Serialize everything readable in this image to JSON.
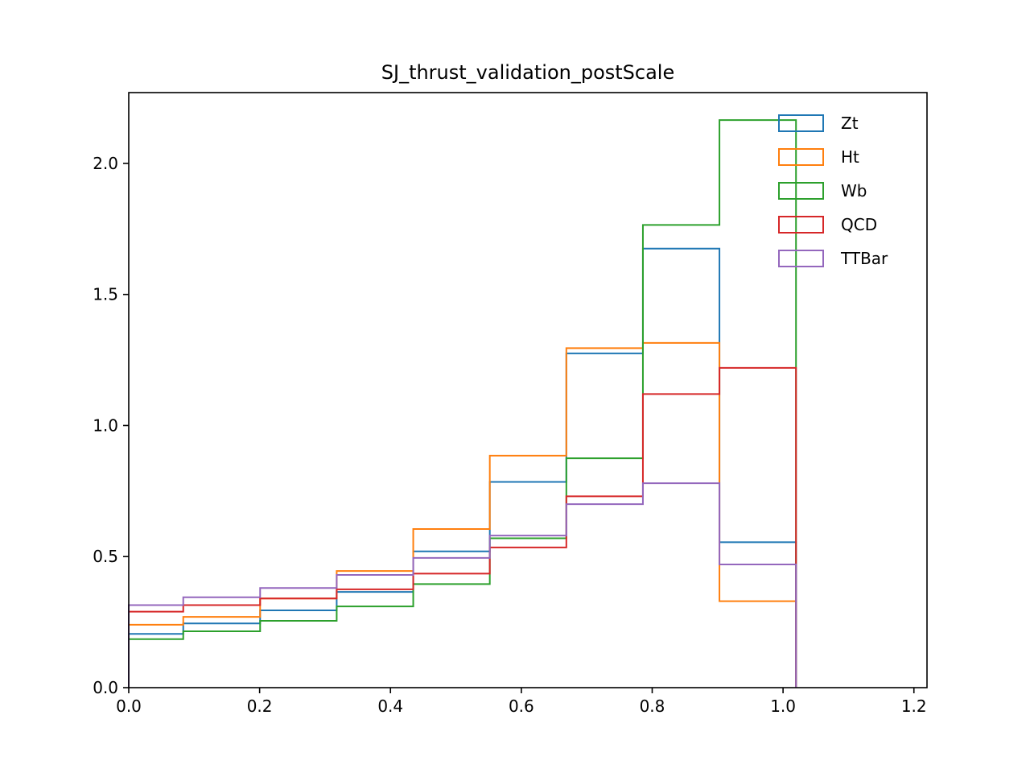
{
  "chart_data": {
    "type": "histogram",
    "title": "SJ_thrust_validation_postScale",
    "xlabel": "",
    "ylabel": "",
    "xlim": [
      0.0,
      1.22
    ],
    "ylim": [
      0.0,
      2.27
    ],
    "xticks": [
      {
        "value": 0.0,
        "label": "0.0"
      },
      {
        "value": 0.2,
        "label": "0.2"
      },
      {
        "value": 0.4,
        "label": "0.4"
      },
      {
        "value": 0.6,
        "label": "0.6"
      },
      {
        "value": 0.8,
        "label": "0.8"
      },
      {
        "value": 1.0,
        "label": "1.0"
      },
      {
        "value": 1.2,
        "label": "1.2"
      }
    ],
    "yticks": [
      {
        "value": 0.0,
        "label": "0.0"
      },
      {
        "value": 0.5,
        "label": "0.5"
      },
      {
        "value": 1.0,
        "label": "1.0"
      },
      {
        "value": 1.5,
        "label": "1.5"
      },
      {
        "value": 2.0,
        "label": "2.0"
      }
    ],
    "grid": false,
    "legend_position": "top-right",
    "bin_edges": [
      0.0,
      0.0833,
      0.2008,
      0.3178,
      0.4348,
      0.5518,
      0.6688,
      0.7858,
      0.9028,
      1.0198
    ],
    "series": [
      {
        "name": "Zt",
        "color": "#1f77b4",
        "values": [
          0.205,
          0.245,
          0.295,
          0.365,
          0.52,
          0.785,
          1.275,
          1.675,
          0.555
        ]
      },
      {
        "name": "Ht",
        "color": "#ff7f0e",
        "values": [
          0.24,
          0.27,
          0.34,
          0.445,
          0.605,
          0.885,
          1.295,
          1.315,
          0.33
        ]
      },
      {
        "name": "Wb",
        "color": "#2ca02c",
        "values": [
          0.185,
          0.215,
          0.255,
          0.31,
          0.395,
          0.57,
          0.875,
          1.765,
          2.165
        ]
      },
      {
        "name": "QCD",
        "color": "#d62728",
        "values": [
          0.29,
          0.315,
          0.34,
          0.375,
          0.435,
          0.535,
          0.73,
          1.12,
          1.22
        ]
      },
      {
        "name": "TTBar",
        "color": "#9467bd",
        "values": [
          0.315,
          0.345,
          0.38,
          0.43,
          0.495,
          0.58,
          0.7,
          0.78,
          0.47
        ]
      }
    ]
  }
}
